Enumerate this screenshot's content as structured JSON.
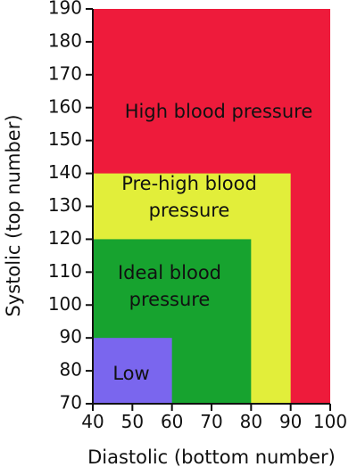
{
  "chart_data": {
    "type": "area",
    "xlabel": "Diastolic (bottom number)",
    "ylabel": "Systolic (top number)",
    "xlim": [
      40,
      100
    ],
    "ylim": [
      70,
      190
    ],
    "x_ticks": [
      40,
      50,
      60,
      70,
      80,
      90,
      100
    ],
    "y_ticks": [
      70,
      80,
      90,
      100,
      110,
      120,
      130,
      140,
      150,
      160,
      170,
      180,
      190
    ],
    "regions": [
      {
        "id": "high",
        "label_lines": [
          "High blood pressure"
        ],
        "x": [
          40,
          100
        ],
        "y": [
          70,
          190
        ],
        "color": "#ee1b3b"
      },
      {
        "id": "prehigh",
        "label_lines": [
          "Pre-high blood",
          "pressure"
        ],
        "x": [
          40,
          90
        ],
        "y": [
          70,
          140
        ],
        "color": "#e2ee3a"
      },
      {
        "id": "ideal",
        "label_lines": [
          "Ideal blood",
          "pressure"
        ],
        "x": [
          40,
          80
        ],
        "y": [
          70,
          120
        ],
        "color": "#17a32f"
      },
      {
        "id": "low",
        "label_lines": [
          "Low"
        ],
        "x": [
          40,
          60
        ],
        "y": [
          70,
          90
        ],
        "color": "#7a66ee"
      }
    ]
  }
}
